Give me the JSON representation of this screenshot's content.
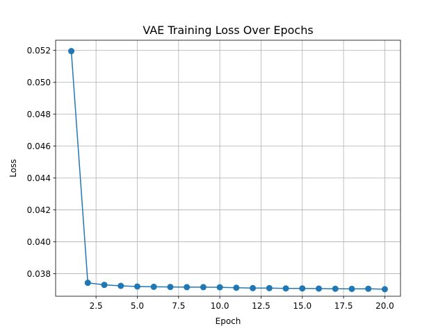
{
  "chart_data": {
    "type": "line",
    "title": "VAE Training Loss Over Epochs",
    "xlabel": "Epoch",
    "ylabel": "Loss",
    "xlim": [
      0.05,
      20.95
    ],
    "ylim": [
      0.03659,
      0.05263
    ],
    "grid": true,
    "line_color": "#1f77b4",
    "x_ticks": [
      2.5,
      5.0,
      7.5,
      10.0,
      12.5,
      15.0,
      17.5,
      20.0
    ],
    "x_tick_labels": [
      "2.5",
      "5.0",
      "7.5",
      "10.0",
      "12.5",
      "15.0",
      "17.5",
      "20.0"
    ],
    "y_ticks": [
      0.038,
      0.04,
      0.042,
      0.044,
      0.046,
      0.048,
      0.05,
      0.052
    ],
    "y_tick_labels": [
      "0.038",
      "0.040",
      "0.042",
      "0.044",
      "0.046",
      "0.048",
      "0.050",
      "0.052"
    ],
    "series": [
      {
        "x": [
          1,
          2,
          3,
          4,
          5,
          6,
          7,
          8,
          9,
          10,
          11,
          12,
          13,
          14,
          15,
          16,
          17,
          18,
          19,
          20
        ],
        "values": [
          0.05195,
          0.03743,
          0.0373,
          0.03724,
          0.0372,
          0.03718,
          0.03717,
          0.03716,
          0.03716,
          0.03715,
          0.03712,
          0.0371,
          0.0371,
          0.03708,
          0.03708,
          0.03707,
          0.03706,
          0.03705,
          0.03706,
          0.03703
        ]
      }
    ]
  }
}
